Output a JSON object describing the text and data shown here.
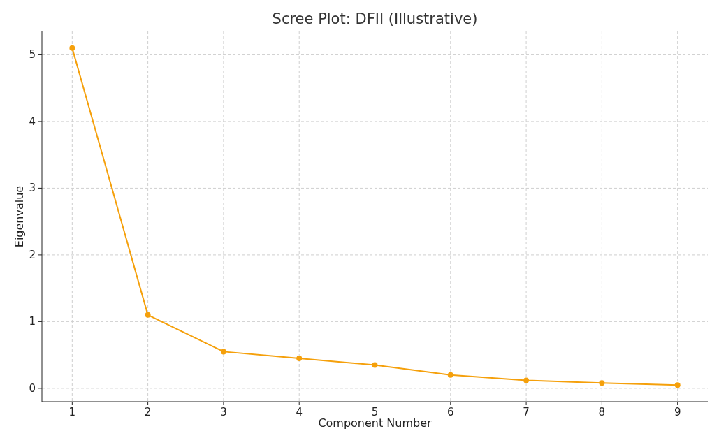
{
  "chart_data": {
    "type": "line",
    "title": "Scree Plot: DFII (Illustrative)",
    "xlabel": "Component Number",
    "ylabel": "Eigenvalue",
    "x": [
      1,
      2,
      3,
      4,
      5,
      6,
      7,
      8,
      9
    ],
    "series": [
      {
        "color": "#f5a00b",
        "values": [
          5.1,
          1.1,
          0.55,
          0.45,
          0.35,
          0.2,
          0.12,
          0.08,
          0.05
        ]
      }
    ],
    "xlim": [
      0.6,
      9.4
    ],
    "xticks": [
      1,
      2,
      3,
      4,
      5,
      6,
      7,
      8,
      9
    ],
    "ylim": [
      -0.2,
      5.35
    ],
    "yticks": [
      0,
      1,
      2,
      3,
      4,
      5
    ],
    "grid": true,
    "marker": "circle",
    "line_style": "solid"
  }
}
